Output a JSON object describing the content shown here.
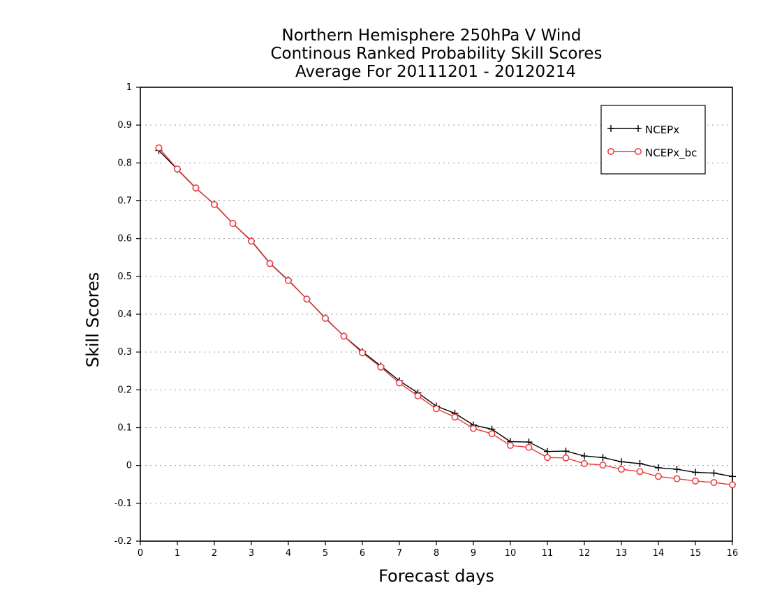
{
  "chart_data": {
    "type": "line",
    "title": [
      "Northern Hemisphere 250hPa V Wind",
      "Continous Ranked Probability Skill Scores",
      "Average For 20111201 - 20120214"
    ],
    "xlabel": "Forecast days",
    "ylabel": "Skill Scores",
    "xlim": [
      0,
      16
    ],
    "ylim": [
      -0.2,
      1
    ],
    "xticks": [
      0,
      1,
      2,
      3,
      4,
      5,
      6,
      7,
      8,
      9,
      10,
      11,
      12,
      13,
      14,
      15,
      16
    ],
    "yticks": [
      -0.2,
      -0.1,
      0,
      0.1,
      0.2,
      0.3,
      0.4,
      0.5,
      0.6,
      0.7,
      0.8,
      0.9,
      1
    ],
    "ytick_labels": [
      "-0.2",
      "-0.1",
      "0",
      "0.1",
      "0.2",
      "0.3",
      "0.4",
      "0.5",
      "0.6",
      "0.7",
      "0.8",
      "0.9",
      "1"
    ],
    "grid": "horizontal-dotted",
    "legend_position": "top-right",
    "x": [
      0.5,
      1,
      1.5,
      2,
      2.5,
      3,
      3.5,
      4,
      4.5,
      5,
      5.5,
      6,
      6.5,
      7,
      7.5,
      8,
      8.5,
      9,
      9.5,
      10,
      10.5,
      11,
      11.5,
      12,
      12.5,
      13,
      13.5,
      14,
      14.5,
      15,
      15.5,
      16
    ],
    "series": [
      {
        "name": "NCEPx",
        "color": "#000000",
        "marker": "plus",
        "values": [
          0.833,
          0.783,
          0.733,
          0.691,
          0.64,
          0.594,
          0.535,
          0.49,
          0.44,
          0.39,
          0.342,
          0.301,
          0.263,
          0.224,
          0.192,
          0.157,
          0.138,
          0.107,
          0.096,
          0.063,
          0.062,
          0.037,
          0.038,
          0.025,
          0.021,
          0.01,
          0.005,
          -0.006,
          -0.01,
          -0.018,
          -0.02,
          -0.029
        ]
      },
      {
        "name": "NCEPx_bc",
        "color": "#e8383a",
        "marker": "circle",
        "values": [
          0.84,
          0.784,
          0.734,
          0.69,
          0.64,
          0.593,
          0.534,
          0.489,
          0.44,
          0.389,
          0.342,
          0.298,
          0.26,
          0.218,
          0.184,
          0.15,
          0.128,
          0.098,
          0.084,
          0.053,
          0.048,
          0.021,
          0.02,
          0.005,
          0.001,
          -0.01,
          -0.016,
          -0.029,
          -0.035,
          -0.041,
          -0.045,
          -0.051
        ]
      }
    ]
  }
}
